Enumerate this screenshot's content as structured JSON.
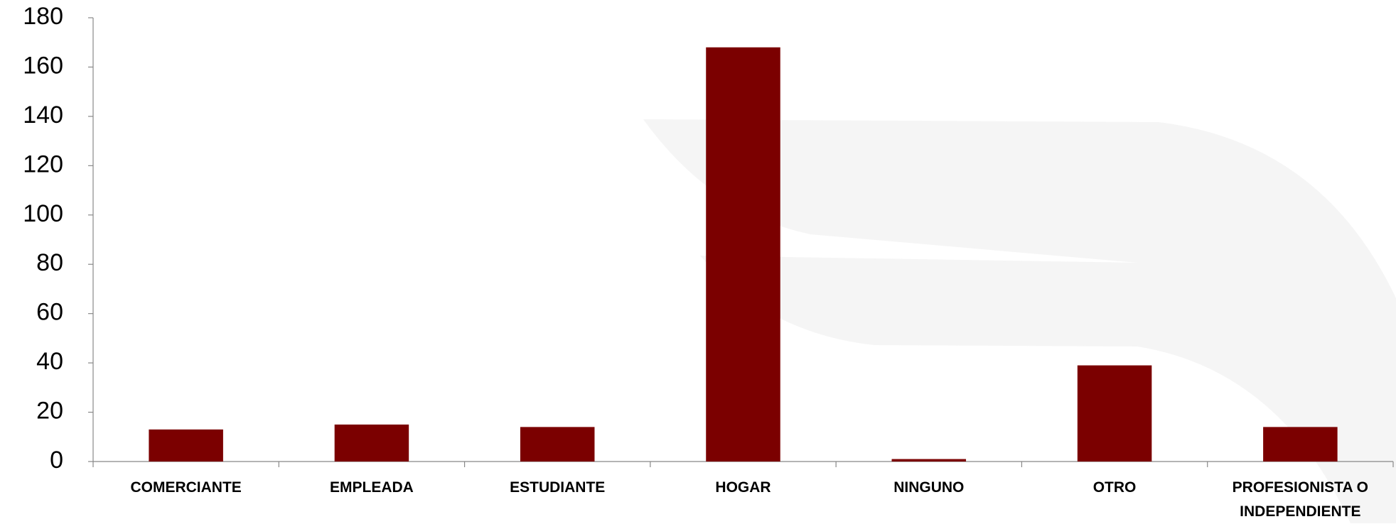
{
  "chart_data": {
    "type": "bar",
    "categories": [
      "COMERCIANTE",
      "EMPLEADA",
      "ESTUDIANTE",
      "HOGAR",
      "NINGUNO",
      "OTRO",
      "PROFESIONISTA O INDEPENDIENTE"
    ],
    "values": [
      13,
      15,
      14,
      168,
      1,
      39,
      14
    ],
    "color": "#7b0000",
    "ylim": [
      0,
      180
    ],
    "yticks": [
      0,
      20,
      40,
      60,
      80,
      100,
      120,
      140,
      160,
      180
    ],
    "grid": false
  }
}
